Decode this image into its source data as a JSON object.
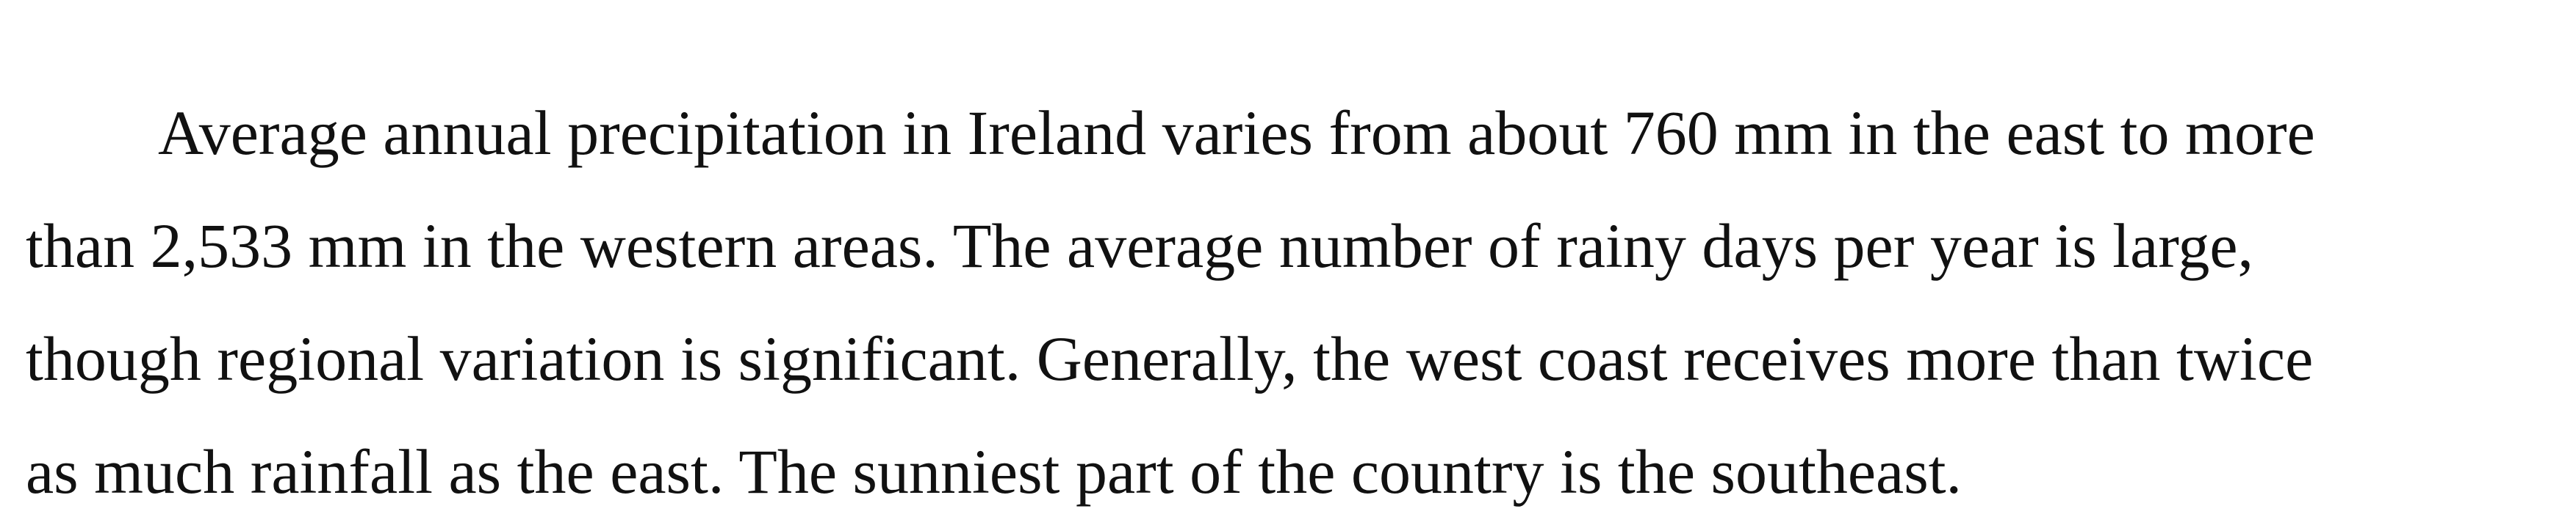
{
  "document": {
    "paragraph": {
      "lines": [
        "Average annual precipitation in Ireland varies from about 760 mm in the east to more",
        "than 2,533 mm in the western areas. The average number of rainy days per year is large,",
        "though regional variation is significant. Generally, the west coast receives more than twice",
        "as much rainfall as the east. The sunniest part of the country is the southeast."
      ]
    }
  }
}
